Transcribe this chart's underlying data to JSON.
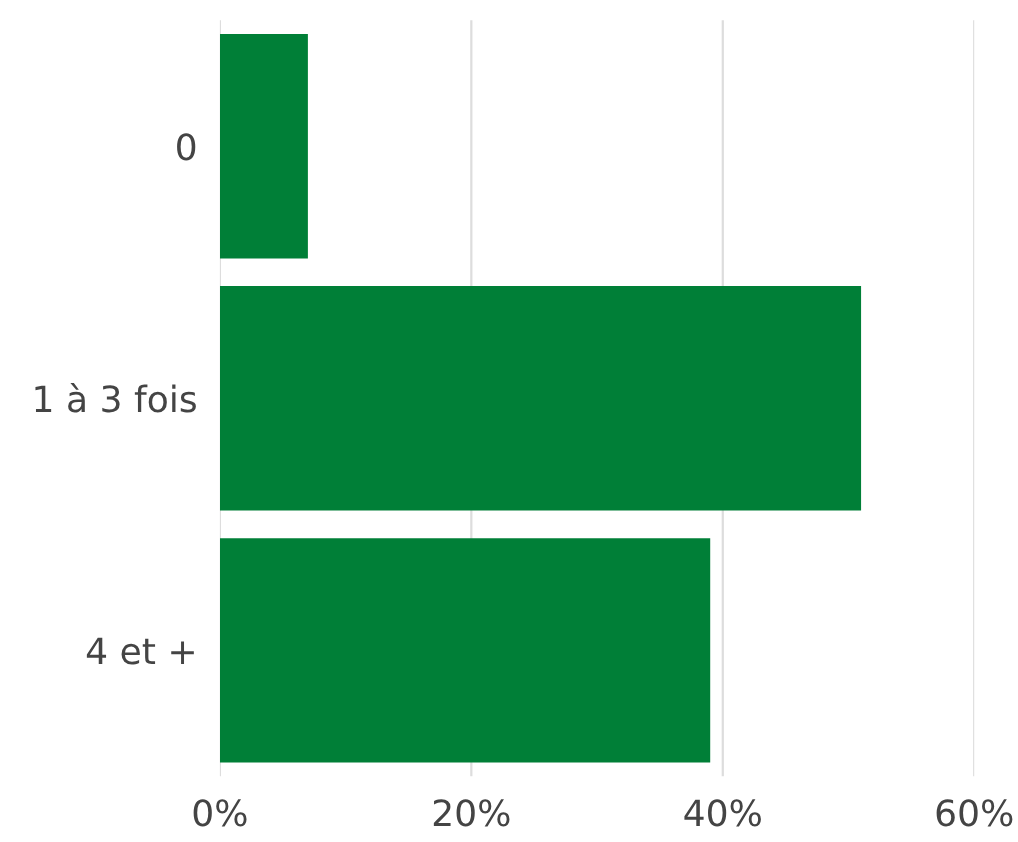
{
  "chart_data": {
    "type": "bar",
    "orientation": "horizontal",
    "categories": [
      "0",
      "1 à 3 fois",
      "4 et +"
    ],
    "values": [
      7,
      51,
      39
    ],
    "color": "#007f37",
    "xlim": [
      0,
      60
    ],
    "xticks": [
      {
        "value": 0,
        "label": "0%"
      },
      {
        "value": 20,
        "label": "20%"
      },
      {
        "value": 40,
        "label": "40%"
      },
      {
        "value": 60,
        "label": "60%"
      }
    ],
    "grid": "x"
  }
}
